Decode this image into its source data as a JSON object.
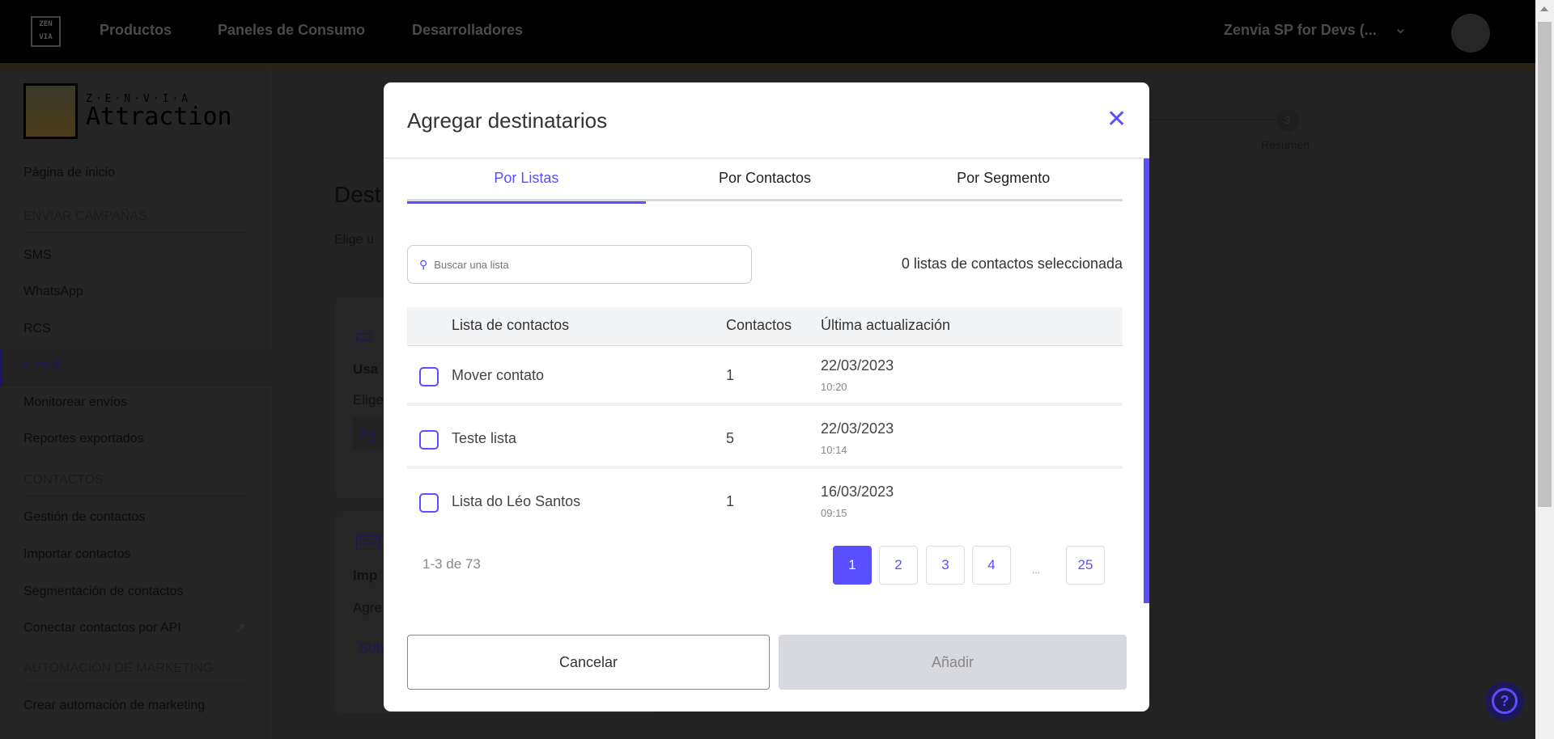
{
  "topbar": {
    "logo": "ZEN VIA",
    "nav": [
      "Productos",
      "Paneles de Consumo",
      "Desarrolladores"
    ],
    "account": "Zenvia SP for Devs (..."
  },
  "sidebar": {
    "brand_sub": "Z·E·N·V·I·A",
    "brand_name": "Attraction",
    "home": "Página de inicio",
    "sections": [
      {
        "title": "ENVIAR CAMPAÑAS",
        "items": [
          "SMS",
          "WhatsApp",
          "RCS",
          "E-mail",
          "Monitorear envíos",
          "Reportes exportados"
        ]
      },
      {
        "title": "CONTACTOS",
        "items": [
          "Gestión de contactos",
          "Importar contactos",
          "Segmentación de contactos",
          "Conectar contactos por API"
        ]
      },
      {
        "title": "AUTOMACIÓN DE MARKETING",
        "items": [
          "Crear automación de marketing"
        ]
      }
    ],
    "active": "E-mail"
  },
  "main": {
    "title": "Dest",
    "subtitle": "Elige u",
    "card1": {
      "title": "Usa",
      "desc": "Elige",
      "button": "Ag"
    },
    "card2": {
      "title": "Imp",
      "desc": "Agre",
      "link": "Sub"
    },
    "stepper": {
      "step": "3",
      "label": "Resumen"
    }
  },
  "modal": {
    "title": "Agregar destinatarios",
    "tabs": [
      "Por Listas",
      "Por Contactos",
      "Por Segmento"
    ],
    "active_tab": "Por Listas",
    "search_placeholder": "Buscar una lista",
    "selected_count": "0 listas de contactos seleccionada",
    "columns": [
      "Lista de contactos",
      "Contactos",
      "Última actualización"
    ],
    "rows": [
      {
        "name": "Mover contato",
        "contacts": "1",
        "date": "22/03/2023",
        "time": "10:20",
        "checked": false
      },
      {
        "name": "Teste lista",
        "contacts": "5",
        "date": "22/03/2023",
        "time": "10:14",
        "checked": false
      },
      {
        "name": "Lista do Léo Santos",
        "contacts": "1",
        "date": "16/03/2023",
        "time": "09:15",
        "checked": false
      }
    ],
    "pagination": {
      "info": "1-3 de 73",
      "pages": [
        "1",
        "2",
        "3",
        "4",
        "25"
      ],
      "ellipsis": "...",
      "current": "1"
    },
    "cancel": "Cancelar",
    "add": "Añadir"
  },
  "colors": {
    "accent": "#5a4fff",
    "topbar": "#000000",
    "stripe": "#c8a26a"
  }
}
